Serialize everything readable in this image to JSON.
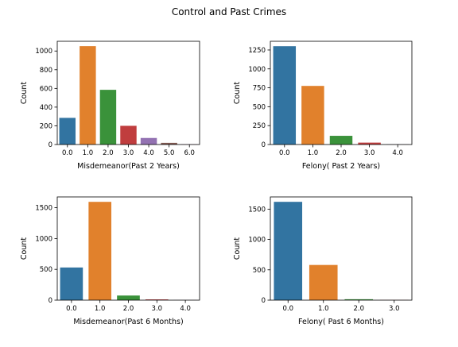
{
  "figure": {
    "title": "Control and Past Crimes"
  },
  "chart_data": [
    {
      "type": "bar",
      "xlabel": "Misdemeanor(Past 2 Years)",
      "ylabel": "Count",
      "categories": [
        "0.0",
        "1.0",
        "2.0",
        "3.0",
        "4.0",
        "5.0",
        "6.0"
      ],
      "values": [
        285,
        1052,
        585,
        200,
        70,
        18,
        3
      ],
      "colors": [
        "#3274a1",
        "#e1812c",
        "#3a923a",
        "#c03d3e",
        "#9372b2",
        "#845b53",
        "#d684bd"
      ],
      "yticks": [
        0,
        200,
        400,
        600,
        800,
        1000
      ],
      "ylim": [
        0,
        1104
      ],
      "grid": false,
      "legend": "none"
    },
    {
      "type": "bar",
      "xlabel": "Felony( Past 2 Years)",
      "ylabel": "Count",
      "categories": [
        "0.0",
        "1.0",
        "2.0",
        "3.0",
        "4.0"
      ],
      "values": [
        1300,
        775,
        115,
        25,
        3
      ],
      "colors": [
        "#3274a1",
        "#e1812c",
        "#3a923a",
        "#c03d3e",
        "#9372b2"
      ],
      "yticks": [
        0,
        250,
        500,
        750,
        1000,
        1250
      ],
      "ylim": [
        0,
        1365
      ],
      "grid": false,
      "legend": "none"
    },
    {
      "type": "bar",
      "xlabel": "Misdemeanor(Past 6 Months)",
      "ylabel": "Count",
      "categories": [
        "0.0",
        "1.0",
        "2.0",
        "3.0",
        "4.0"
      ],
      "values": [
        530,
        1595,
        75,
        12,
        2
      ],
      "colors": [
        "#3274a1",
        "#e1812c",
        "#3a923a",
        "#c03d3e",
        "#9372b2"
      ],
      "yticks": [
        0,
        500,
        1000,
        1500
      ],
      "ylim": [
        0,
        1675
      ],
      "grid": false,
      "legend": "none"
    },
    {
      "type": "bar",
      "xlabel": "Felony( Past 6 Months)",
      "ylabel": "Count",
      "categories": [
        "0.0",
        "1.0",
        "2.0",
        "3.0"
      ],
      "values": [
        1620,
        580,
        15,
        3
      ],
      "colors": [
        "#3274a1",
        "#e1812c",
        "#3a923a",
        "#c03d3e"
      ],
      "yticks": [
        0,
        500,
        1000,
        1500
      ],
      "ylim": [
        0,
        1701
      ],
      "grid": false,
      "legend": "none"
    }
  ]
}
